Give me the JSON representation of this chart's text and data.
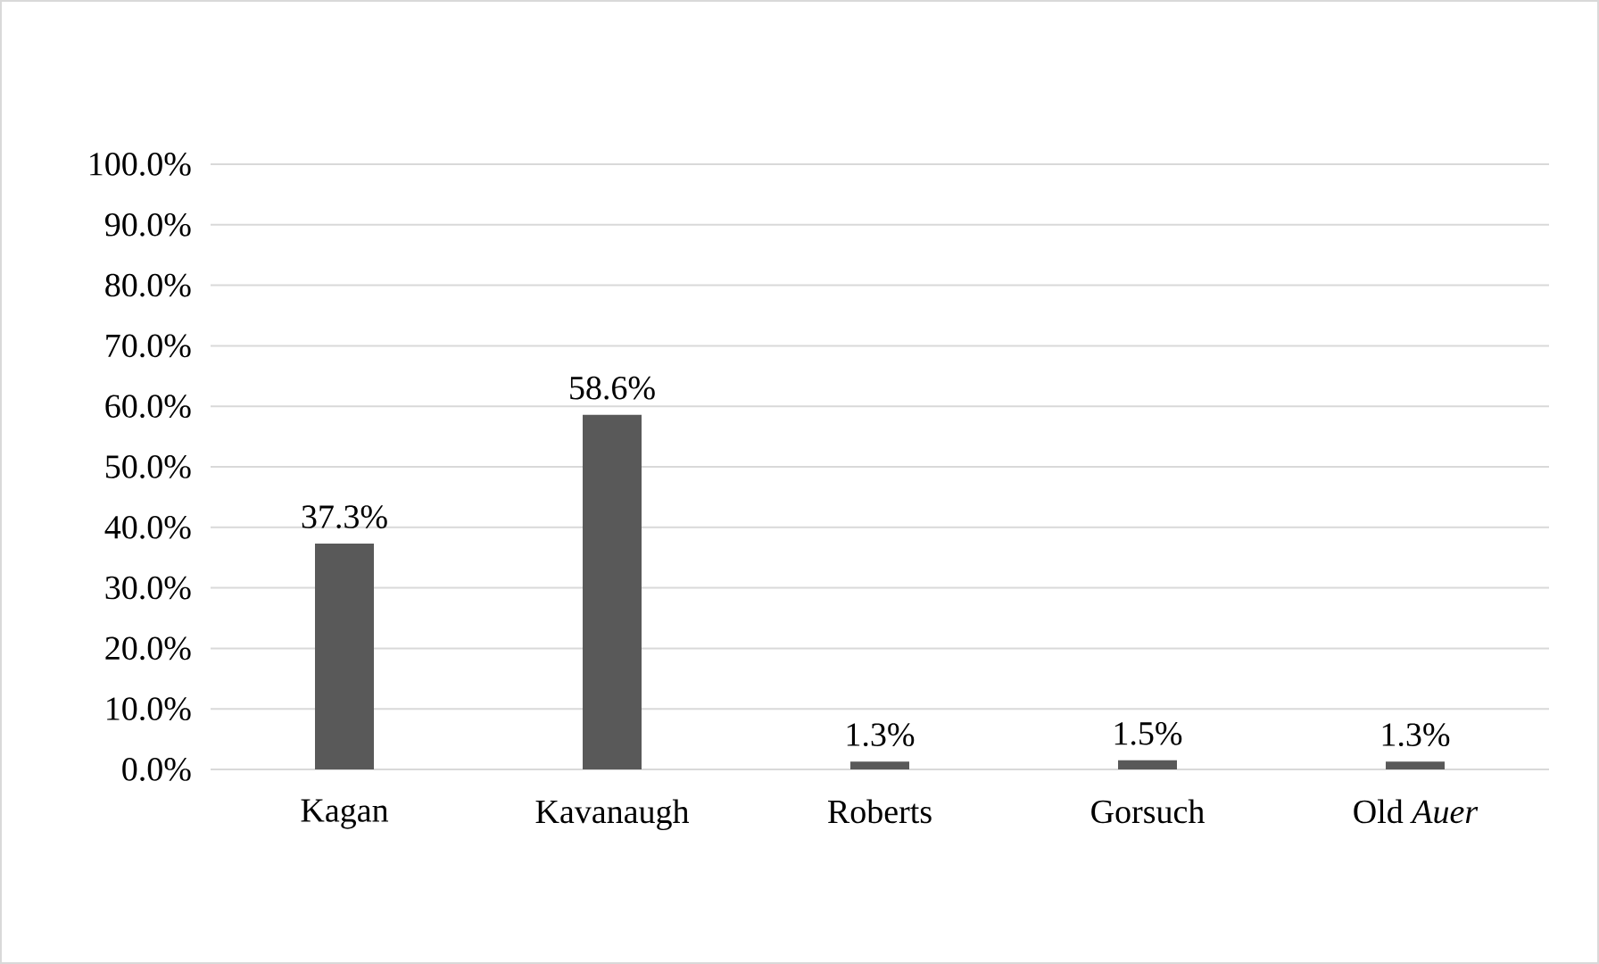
{
  "chart_data": {
    "type": "bar",
    "categories": [
      "Kagan",
      "Kavanaugh",
      "Roberts",
      "Gorsuch",
      "Old *Auer*"
    ],
    "values": [
      37.3,
      58.6,
      1.3,
      1.5,
      1.3
    ],
    "value_labels": [
      "37.3%",
      "58.6%",
      "1.3%",
      "1.5%",
      "1.3%"
    ],
    "color": "#595959",
    "ylim": [
      0,
      100
    ],
    "yticks": [
      {
        "value": 0,
        "label": "0.0%"
      },
      {
        "value": 10,
        "label": "10.0%"
      },
      {
        "value": 20,
        "label": "20.0%"
      },
      {
        "value": 30,
        "label": "30.0%"
      },
      {
        "value": 40,
        "label": "40.0%"
      },
      {
        "value": 50,
        "label": "50.0%"
      },
      {
        "value": 60,
        "label": "60.0%"
      },
      {
        "value": 70,
        "label": "70.0%"
      },
      {
        "value": 80,
        "label": "80.0%"
      },
      {
        "value": 90,
        "label": "90.0%"
      },
      {
        "value": 100,
        "label": "100.0%"
      }
    ],
    "grid": "y"
  }
}
